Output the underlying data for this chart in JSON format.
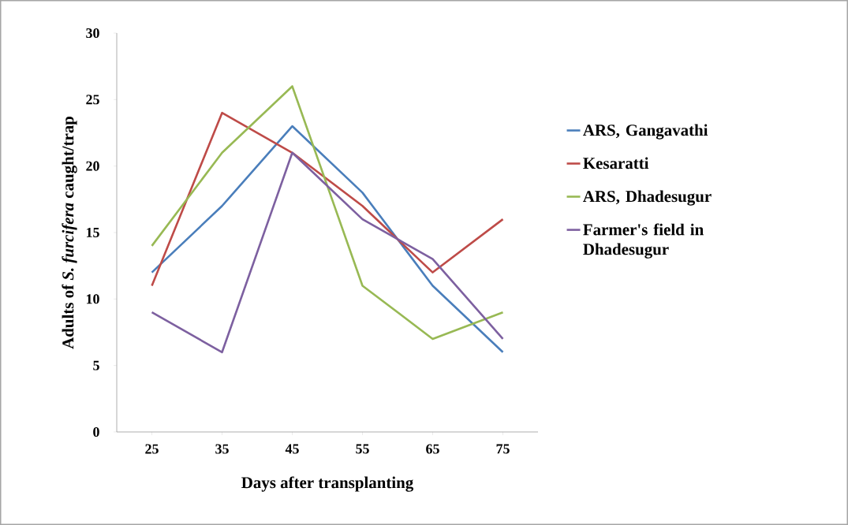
{
  "chart_data": {
    "type": "line",
    "xlabel": "Days after transplanting",
    "ylabel": "Adults of *S. furcifera* caught/trap",
    "categories": [
      "25",
      "35",
      "45",
      "55",
      "65",
      "75"
    ],
    "series": [
      {
        "name": "ARS, Gangavathi",
        "color": "#4a7ebb",
        "values": [
          12,
          17,
          23,
          18,
          11,
          6
        ]
      },
      {
        "name": "Kesaratti",
        "color": "#be4b48",
        "values": [
          11,
          24,
          21,
          17,
          12,
          16
        ]
      },
      {
        "name": "ARS, Dhadesugur",
        "color": "#98b954",
        "values": [
          14,
          21,
          26,
          11,
          7,
          9
        ]
      },
      {
        "name": "Farmer's field in Dhadesugur",
        "color": "#7d60a0",
        "values": [
          9,
          6,
          21,
          16,
          13,
          7
        ]
      }
    ],
    "ylim": [
      0,
      30
    ],
    "yticks": [
      0,
      5,
      10,
      15,
      20,
      25,
      30
    ],
    "grid": false,
    "legend": "right",
    "line_style": "solid"
  }
}
